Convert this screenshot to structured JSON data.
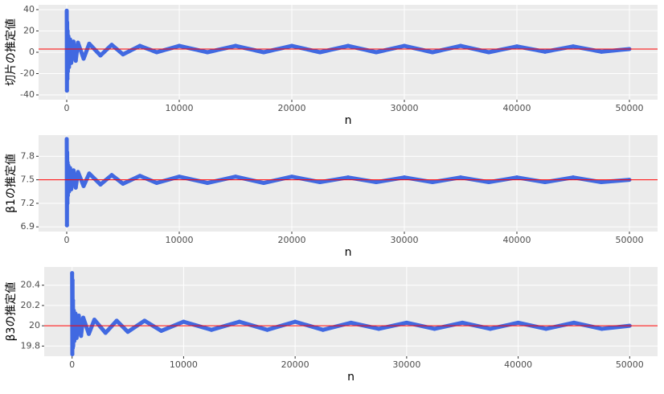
{
  "chart_data": [
    {
      "type": "scatter",
      "y_label": "切片の推定値",
      "x_label": "n",
      "x": [
        1,
        20,
        40,
        60,
        80,
        100,
        150,
        200,
        300,
        400,
        600,
        800,
        1000,
        1500,
        2000,
        3000,
        4000,
        5000,
        6500,
        8000,
        10000,
        12500,
        15000,
        17500,
        20000,
        22500,
        25000,
        27500,
        30000,
        32500,
        35000,
        37500,
        40000,
        42500,
        45000,
        47500,
        50000
      ],
      "values": [
        39,
        -36,
        28,
        -25,
        20,
        -18,
        15,
        -14,
        12,
        -10,
        10,
        -8,
        9,
        -6,
        8,
        -3,
        7,
        -2,
        6,
        0,
        6,
        0,
        6,
        0,
        6,
        0,
        6,
        0,
        6,
        0,
        6,
        0,
        5.5,
        0.5,
        5.5,
        0.5,
        3
      ],
      "color": "#4169E1",
      "hline": 3,
      "hline_color": "#FF0000",
      "xlim": [
        -2500,
        52500
      ],
      "ylim": [
        -44.5,
        44.5
      ],
      "xticks": [
        0,
        10000,
        20000,
        30000,
        40000,
        50000
      ],
      "yticks": [
        -40,
        -20,
        0,
        20,
        40
      ],
      "grid": true
    },
    {
      "type": "scatter",
      "y_label": "β1の推定値",
      "x_label": "n",
      "x": [
        1,
        20,
        40,
        60,
        80,
        100,
        150,
        200,
        300,
        400,
        600,
        800,
        1000,
        1500,
        2000,
        3000,
        4000,
        5000,
        6500,
        8000,
        10000,
        12500,
        15000,
        17500,
        20000,
        22500,
        25000,
        27500,
        30000,
        32500,
        35000,
        37500,
        40000,
        42500,
        45000,
        47500,
        50000
      ],
      "values": [
        8.02,
        6.92,
        7.85,
        7.2,
        7.72,
        7.3,
        7.68,
        7.35,
        7.65,
        7.38,
        7.62,
        7.4,
        7.6,
        7.42,
        7.58,
        7.44,
        7.56,
        7.45,
        7.55,
        7.46,
        7.54,
        7.46,
        7.54,
        7.46,
        7.54,
        7.47,
        7.53,
        7.47,
        7.53,
        7.47,
        7.53,
        7.47,
        7.53,
        7.47,
        7.53,
        7.47,
        7.5
      ],
      "color": "#4169E1",
      "hline": 7.5,
      "hline_color": "#FF0000",
      "xlim": [
        -2500,
        52500
      ],
      "ylim": [
        6.84,
        8.07
      ],
      "xticks": [
        0,
        10000,
        20000,
        30000,
        40000,
        50000
      ],
      "yticks": [
        6.9,
        7.2,
        7.5,
        7.8
      ],
      "grid": true
    },
    {
      "type": "scatter",
      "y_label": "β3の推定値",
      "x_label": "n",
      "x": [
        1,
        20,
        40,
        60,
        80,
        100,
        150,
        200,
        300,
        400,
        600,
        800,
        1000,
        1500,
        2000,
        3000,
        4000,
        5000,
        6500,
        8000,
        10000,
        12500,
        15000,
        17500,
        20000,
        22500,
        25000,
        27500,
        30000,
        32500,
        35000,
        37500,
        40000,
        42500,
        45000,
        47500,
        50000
      ],
      "values": [
        20.52,
        19.72,
        20.45,
        19.78,
        20.25,
        19.8,
        20.15,
        19.85,
        20.12,
        19.88,
        20.1,
        19.9,
        20.08,
        19.92,
        20.06,
        19.93,
        20.05,
        19.94,
        20.05,
        19.95,
        20.04,
        19.96,
        20.04,
        19.96,
        20.04,
        19.96,
        20.03,
        19.97,
        20.03,
        19.97,
        20.03,
        19.97,
        20.03,
        19.97,
        20.03,
        19.97,
        20.0
      ],
      "color": "#4169E1",
      "hline": 20,
      "hline_color": "#FF0000",
      "xlim": [
        -2500,
        52500
      ],
      "ylim": [
        19.7,
        20.58
      ],
      "xticks": [
        0,
        10000,
        20000,
        30000,
        40000,
        50000
      ],
      "yticks": [
        19.8,
        20.0,
        {
          "value": 20.2,
          "label": "20.2"
        },
        20.4
      ],
      "grid": true
    }
  ]
}
